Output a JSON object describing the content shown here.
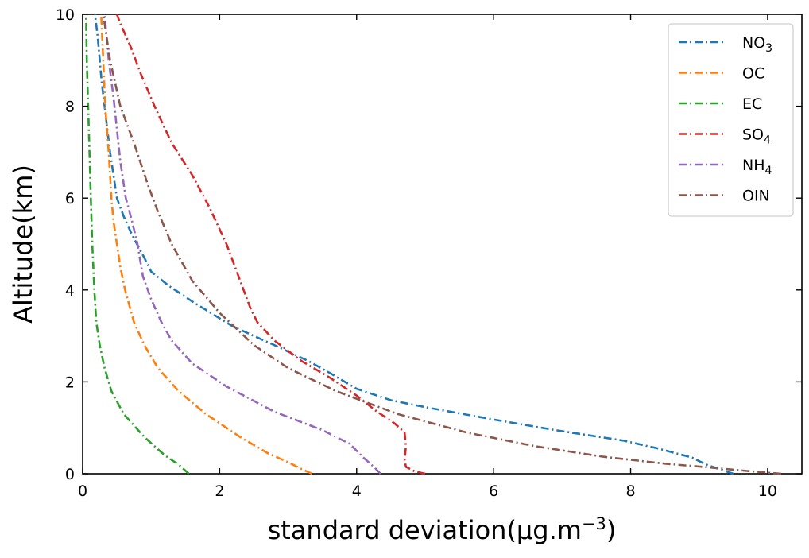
{
  "chart_data": {
    "type": "line",
    "xlabel": "standard deviation(μg.m",
    "xlabel_superscript": "−3",
    "xlabel_suffix": ")",
    "ylabel": "Altitude(km)",
    "xlim": [
      0,
      10.5
    ],
    "ylim": [
      0,
      10
    ],
    "xticks": [
      0,
      2,
      4,
      6,
      8,
      10
    ],
    "yticks": [
      0,
      2,
      4,
      6,
      8,
      10
    ],
    "grid": false,
    "legend_position": "top-right",
    "line_style": "dash-dot",
    "series": [
      {
        "name": "NO",
        "subscript": "3",
        "color": "#1f77b4",
        "points": [
          [
            9.5,
            0.0
          ],
          [
            9.3,
            0.1
          ],
          [
            9.1,
            0.2
          ],
          [
            8.9,
            0.35
          ],
          [
            8.4,
            0.55
          ],
          [
            7.9,
            0.72
          ],
          [
            6.9,
            0.95
          ],
          [
            6.0,
            1.18
          ],
          [
            5.0,
            1.45
          ],
          [
            4.5,
            1.6
          ],
          [
            4.0,
            1.85
          ],
          [
            3.6,
            2.2
          ],
          [
            3.3,
            2.45
          ],
          [
            2.8,
            2.8
          ],
          [
            2.2,
            3.2
          ],
          [
            1.6,
            3.75
          ],
          [
            1.25,
            4.1
          ],
          [
            1.0,
            4.4
          ],
          [
            0.9,
            4.7
          ],
          [
            0.72,
            5.2
          ],
          [
            0.6,
            5.6
          ],
          [
            0.5,
            6.0
          ],
          [
            0.45,
            6.5
          ],
          [
            0.4,
            7.0
          ],
          [
            0.36,
            7.5
          ],
          [
            0.32,
            8.0
          ],
          [
            0.28,
            8.5
          ],
          [
            0.25,
            9.0
          ],
          [
            0.22,
            9.5
          ],
          [
            0.18,
            10.0
          ]
        ]
      },
      {
        "name": "OC",
        "color": "#ff7f0e",
        "points": [
          [
            3.35,
            0.0
          ],
          [
            3.2,
            0.1
          ],
          [
            3.0,
            0.25
          ],
          [
            2.7,
            0.45
          ],
          [
            2.3,
            0.8
          ],
          [
            1.8,
            1.3
          ],
          [
            1.4,
            1.8
          ],
          [
            1.1,
            2.3
          ],
          [
            0.9,
            2.8
          ],
          [
            0.75,
            3.3
          ],
          [
            0.62,
            4.0
          ],
          [
            0.55,
            4.5
          ],
          [
            0.5,
            5.0
          ],
          [
            0.45,
            5.5
          ],
          [
            0.42,
            6.0
          ],
          [
            0.38,
            7.0
          ],
          [
            0.33,
            8.0
          ],
          [
            0.3,
            9.0
          ],
          [
            0.27,
            10.0
          ]
        ]
      },
      {
        "name": "EC",
        "color": "#2ca02c",
        "points": [
          [
            1.55,
            0.0
          ],
          [
            1.4,
            0.2
          ],
          [
            1.2,
            0.4
          ],
          [
            0.9,
            0.8
          ],
          [
            0.6,
            1.3
          ],
          [
            0.42,
            1.8
          ],
          [
            0.32,
            2.3
          ],
          [
            0.25,
            2.8
          ],
          [
            0.2,
            3.3
          ],
          [
            0.17,
            4.0
          ],
          [
            0.14,
            5.0
          ],
          [
            0.12,
            6.0
          ],
          [
            0.1,
            7.0
          ],
          [
            0.08,
            8.0
          ],
          [
            0.06,
            9.0
          ],
          [
            0.05,
            10.0
          ]
        ]
      },
      {
        "name": "SO",
        "subscript": "4",
        "color": "#d62728",
        "points": [
          [
            5.0,
            0.0
          ],
          [
            4.85,
            0.05
          ],
          [
            4.72,
            0.15
          ],
          [
            4.7,
            0.3
          ],
          [
            4.72,
            0.6
          ],
          [
            4.7,
            0.9
          ],
          [
            4.55,
            1.1
          ],
          [
            4.3,
            1.35
          ],
          [
            4.0,
            1.7
          ],
          [
            3.6,
            2.1
          ],
          [
            3.2,
            2.45
          ],
          [
            2.8,
            2.9
          ],
          [
            2.55,
            3.3
          ],
          [
            2.45,
            3.6
          ],
          [
            2.3,
            4.2
          ],
          [
            2.1,
            5.0
          ],
          [
            1.85,
            5.8
          ],
          [
            1.6,
            6.5
          ],
          [
            1.3,
            7.2
          ],
          [
            1.05,
            8.0
          ],
          [
            0.85,
            8.7
          ],
          [
            0.7,
            9.3
          ],
          [
            0.55,
            9.8
          ],
          [
            0.5,
            10.0
          ]
        ]
      },
      {
        "name": "NH",
        "subscript": "4",
        "color": "#9467bd",
        "points": [
          [
            4.35,
            0.0
          ],
          [
            4.25,
            0.15
          ],
          [
            4.1,
            0.35
          ],
          [
            3.9,
            0.65
          ],
          [
            3.5,
            0.95
          ],
          [
            2.8,
            1.35
          ],
          [
            2.1,
            1.9
          ],
          [
            1.6,
            2.4
          ],
          [
            1.3,
            2.9
          ],
          [
            1.15,
            3.3
          ],
          [
            1.0,
            3.8
          ],
          [
            0.88,
            4.3
          ],
          [
            0.8,
            5.0
          ],
          [
            0.72,
            5.5
          ],
          [
            0.63,
            6.0
          ],
          [
            0.55,
            6.8
          ],
          [
            0.5,
            7.5
          ],
          [
            0.45,
            8.2
          ],
          [
            0.38,
            9.0
          ],
          [
            0.32,
            10.0
          ]
        ]
      },
      {
        "name": "OIN",
        "color": "#8c564b",
        "points": [
          [
            10.2,
            0.0
          ],
          [
            9.7,
            0.06
          ],
          [
            9.2,
            0.13
          ],
          [
            8.5,
            0.22
          ],
          [
            7.6,
            0.37
          ],
          [
            6.6,
            0.6
          ],
          [
            5.6,
            0.9
          ],
          [
            4.6,
            1.3
          ],
          [
            3.7,
            1.8
          ],
          [
            3.0,
            2.3
          ],
          [
            2.5,
            2.8
          ],
          [
            2.0,
            3.5
          ],
          [
            1.6,
            4.2
          ],
          [
            1.3,
            5.0
          ],
          [
            1.1,
            5.7
          ],
          [
            0.95,
            6.3
          ],
          [
            0.75,
            7.2
          ],
          [
            0.55,
            8.0
          ],
          [
            0.4,
            9.0
          ],
          [
            0.3,
            10.0
          ]
        ]
      }
    ]
  }
}
